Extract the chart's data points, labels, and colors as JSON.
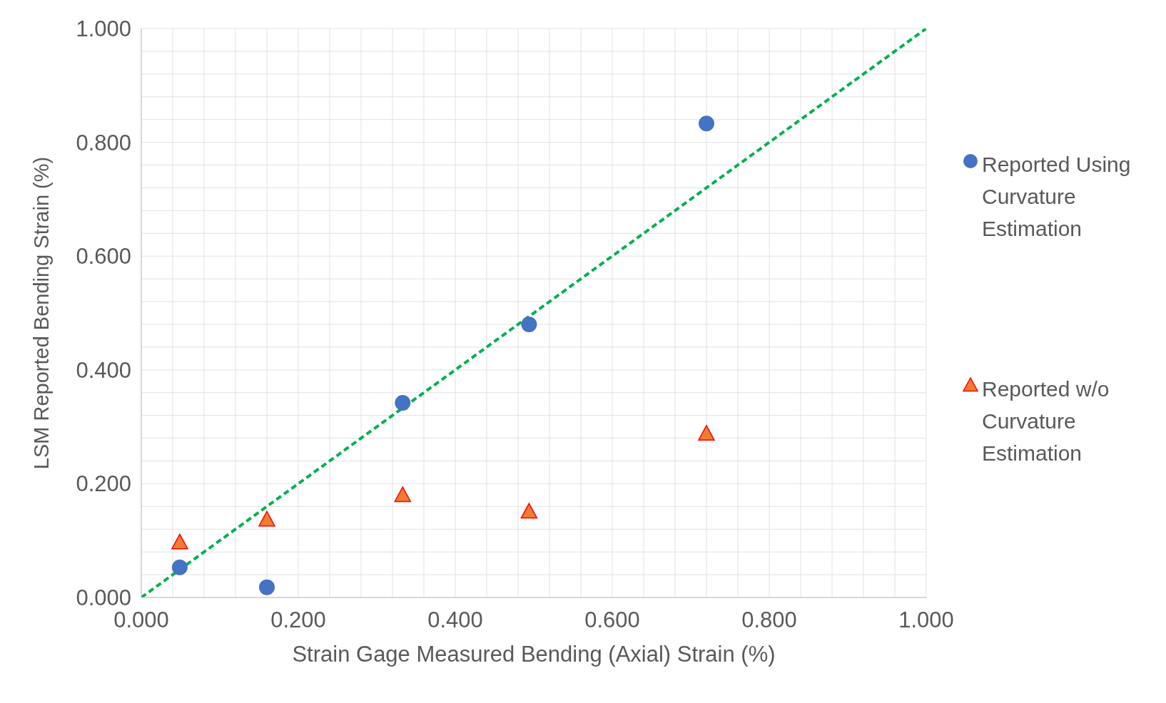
{
  "chart_data": {
    "type": "scatter",
    "xlabel": "Strain Gage Measured Bending (Axial) Strain (%)",
    "ylabel": "LSM Reported Bending Strain (%)",
    "series": [
      {
        "name": "Reported Using Curvature Estimation",
        "color": "#4472c4",
        "marker": "circle",
        "x": [
          0.049,
          0.16,
          0.333,
          0.494,
          0.72
        ],
        "values": [
          0.053,
          0.018,
          0.342,
          0.48,
          0.833
        ]
      },
      {
        "name": "Reported w/o Curvature Estimation",
        "color": "#ed7d31",
        "marker": "triangle",
        "x": [
          0.049,
          0.16,
          0.333,
          0.494,
          0.72
        ],
        "values": [
          0.096,
          0.136,
          0.179,
          0.15,
          0.287
        ]
      },
      {
        "type": "line",
        "color": "#00b050",
        "line_style": "dashed",
        "marker": "none",
        "x": [
          0,
          1
        ],
        "values": [
          0,
          1
        ]
      }
    ],
    "xlim": [
      0,
      1
    ],
    "ylim": [
      0,
      1
    ],
    "xticks": [
      {
        "value": 0,
        "label": "0.000"
      },
      {
        "value": 0.04,
        "label": null
      },
      {
        "value": 0.08,
        "label": null
      },
      {
        "value": 0.12,
        "label": null
      },
      {
        "value": 0.16,
        "label": null
      },
      {
        "value": 0.2,
        "label": "0.200"
      },
      {
        "value": 0.24,
        "label": null
      },
      {
        "value": 0.28,
        "label": null
      },
      {
        "value": 0.32,
        "label": null
      },
      {
        "value": 0.36,
        "label": null
      },
      {
        "value": 0.4,
        "label": "0.400"
      },
      {
        "value": 0.44,
        "label": null
      },
      {
        "value": 0.48,
        "label": null
      },
      {
        "value": 0.52,
        "label": null
      },
      {
        "value": 0.56,
        "label": null
      },
      {
        "value": 0.6,
        "label": "0.600"
      },
      {
        "value": 0.64,
        "label": null
      },
      {
        "value": 0.68,
        "label": null
      },
      {
        "value": 0.72,
        "label": null
      },
      {
        "value": 0.76,
        "label": null
      },
      {
        "value": 0.8,
        "label": "0.800"
      },
      {
        "value": 0.84,
        "label": null
      },
      {
        "value": 0.88,
        "label": null
      },
      {
        "value": 0.92,
        "label": null
      },
      {
        "value": 0.96,
        "label": null
      },
      {
        "value": 1,
        "label": "1.000"
      }
    ],
    "yticks": [
      {
        "value": 0,
        "label": "0.000"
      },
      {
        "value": 0.04,
        "label": null
      },
      {
        "value": 0.08,
        "label": null
      },
      {
        "value": 0.12,
        "label": null
      },
      {
        "value": 0.16,
        "label": null
      },
      {
        "value": 0.2,
        "label": "0.200"
      },
      {
        "value": 0.24,
        "label": null
      },
      {
        "value": 0.28,
        "label": null
      },
      {
        "value": 0.32,
        "label": null
      },
      {
        "value": 0.36,
        "label": null
      },
      {
        "value": 0.4,
        "label": "0.400"
      },
      {
        "value": 0.44,
        "label": null
      },
      {
        "value": 0.48,
        "label": null
      },
      {
        "value": 0.52,
        "label": null
      },
      {
        "value": 0.56,
        "label": null
      },
      {
        "value": 0.6,
        "label": "0.600"
      },
      {
        "value": 0.64,
        "label": null
      },
      {
        "value": 0.68,
        "label": null
      },
      {
        "value": 0.72,
        "label": null
      },
      {
        "value": 0.76,
        "label": null
      },
      {
        "value": 0.8,
        "label": "0.800"
      },
      {
        "value": 0.84,
        "label": null
      },
      {
        "value": 0.88,
        "label": null
      },
      {
        "value": 0.92,
        "label": null
      },
      {
        "value": 0.96,
        "label": null
      },
      {
        "value": 1,
        "label": "1.000"
      }
    ],
    "grid": true,
    "legend": "right"
  }
}
